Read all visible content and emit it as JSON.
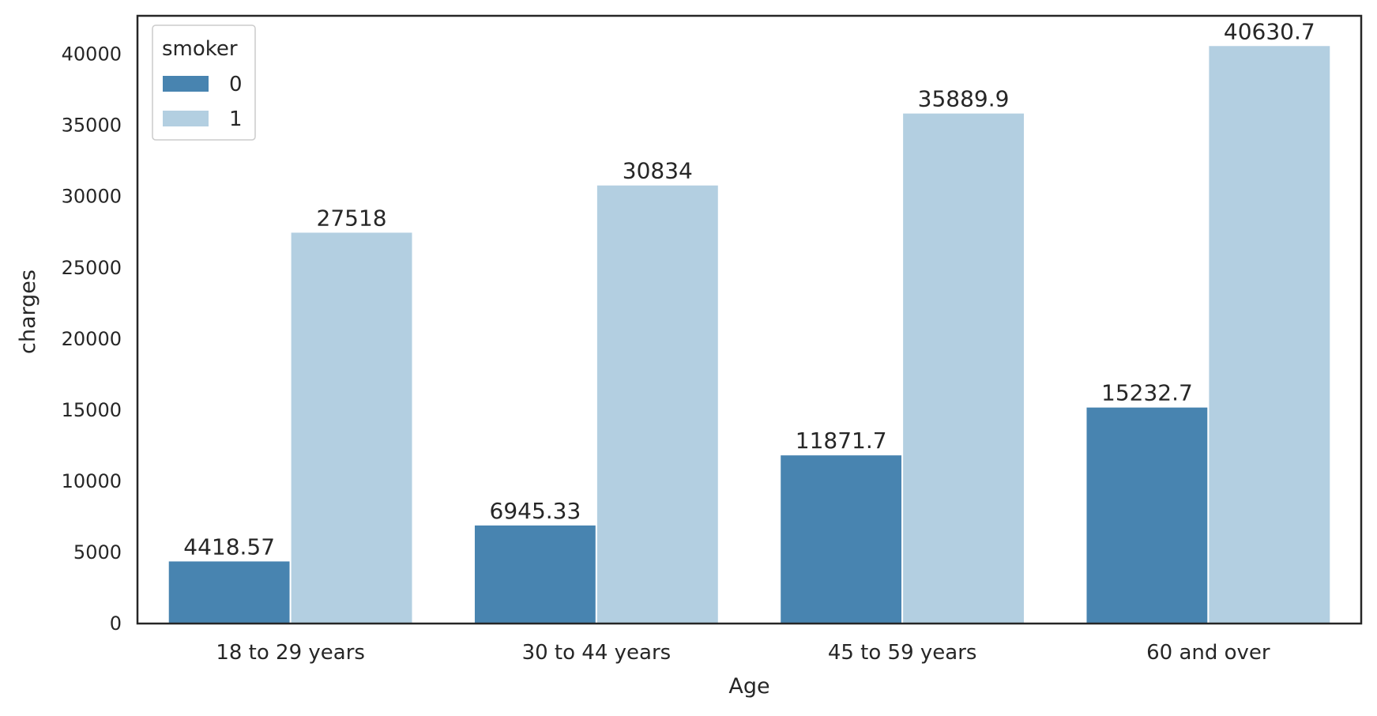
{
  "chart_data": {
    "type": "bar",
    "title": "",
    "xlabel": "Age",
    "ylabel": "charges",
    "categories": [
      "18 to 29 years",
      "30 to 44 years",
      "45 to 59 years",
      "60 and over"
    ],
    "series": [
      {
        "name": "0",
        "color": "#4884b0",
        "values": [
          4418.57,
          6945.33,
          11871.7,
          15232.7
        ],
        "labels": [
          "4418.57",
          "6945.33",
          "11871.7",
          "15232.7"
        ]
      },
      {
        "name": "1",
        "color": "#b3cfe1",
        "values": [
          27518,
          30834,
          35889.9,
          40630.7
        ],
        "labels": [
          "27518",
          "30834",
          "35889.9",
          "40630.7"
        ]
      }
    ],
    "ylim": [
      0,
      42700
    ],
    "yticks": [
      0,
      5000,
      10000,
      15000,
      20000,
      25000,
      30000,
      35000,
      40000
    ],
    "legend": {
      "title": "smoker",
      "position": "top-left"
    },
    "grid": false
  }
}
